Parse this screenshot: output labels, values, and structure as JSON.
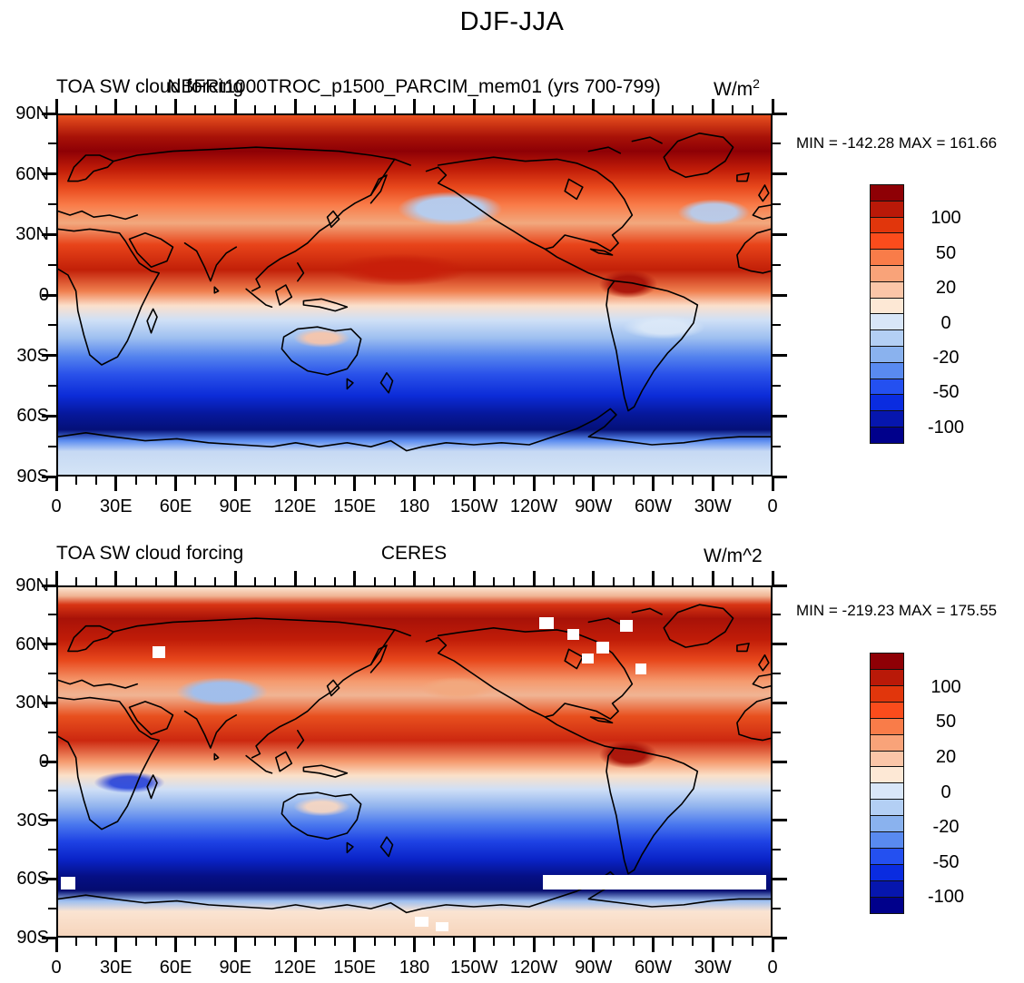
{
  "figure_title": "DJF-JJA",
  "panels": [
    {
      "title_left": "TOA SW cloud forcing",
      "title_center": "NBFRt1000TROC_p1500_PARCIM_mem01 (yrs 700-799)",
      "title_right": "W/m",
      "title_right_sup": "2",
      "stats": "MIN = -142.28 MAX = 161.66"
    },
    {
      "title_left": "TOA SW cloud forcing",
      "title_center": "CERES",
      "title_right": "W/m^2",
      "title_right_sup": "",
      "stats": "MIN = -219.23 MAX = 175.55"
    }
  ],
  "axes": {
    "lat_labels": [
      "90N",
      "60N",
      "30N",
      "0",
      "30S",
      "60S",
      "90S"
    ],
    "lon_labels": [
      "0",
      "30E",
      "60E",
      "90E",
      "120E",
      "150E",
      "180",
      "150W",
      "120W",
      "90W",
      "60W",
      "30W",
      "0"
    ],
    "lon_major_step_deg": 30,
    "lon_minor_step_deg": 10,
    "lat_major_step_deg": 30,
    "lat_minor_step_deg": 15
  },
  "colorbar": {
    "colors": [
      "#8e0005",
      "#b91908",
      "#e1360c",
      "#fb4c1c",
      "#f97c49",
      "#f9a379",
      "#fbc6a8",
      "#fde8d5",
      "#d8e6f8",
      "#b3cff4",
      "#8ab2ee",
      "#598af0",
      "#2450f0",
      "#0a2ce0",
      "#0616ae",
      "#00008b"
    ],
    "labels": [
      "100",
      "50",
      "20",
      "0",
      "-20",
      "-50",
      "-100"
    ],
    "label_boundaries": [
      2,
      4,
      6,
      8,
      10,
      12,
      14
    ]
  },
  "chart_data": [
    {
      "type": "heatmap",
      "panel": "top",
      "title": "NBFRt1000TROC_p1500_PARCIM_mem01 (yrs 700-799)",
      "variable": "TOA SW cloud forcing",
      "season_difference": "DJF-JJA",
      "units": "W/m^2",
      "min": -142.28,
      "max": 161.66,
      "contour_levels": [
        -150,
        -100,
        -70,
        -50,
        -30,
        -20,
        -10,
        0,
        10,
        20,
        30,
        50,
        70,
        100,
        150
      ],
      "x_tick_labels": [
        "0",
        "30E",
        "60E",
        "90E",
        "120E",
        "150E",
        "180",
        "150W",
        "120W",
        "90W",
        "60W",
        "30W",
        "0"
      ],
      "y_tick_labels": [
        "90N",
        "60N",
        "30N",
        "0",
        "30S",
        "60S",
        "90S"
      ],
      "x_range_deg": [
        0,
        360
      ],
      "y_range_deg": [
        -90,
        90
      ],
      "legend_position": "right",
      "palette_high_to_low": [
        "#8e0005",
        "#b91908",
        "#e1360c",
        "#fb4c1c",
        "#f97c49",
        "#f9a379",
        "#fbc6a8",
        "#fde8d5",
        "#d8e6f8",
        "#b3cff4",
        "#8ab2ee",
        "#598af0",
        "#2450f0",
        "#0a2ce0",
        "#0616ae",
        "#00008b"
      ]
    },
    {
      "type": "heatmap",
      "panel": "bottom",
      "title": "CERES",
      "variable": "TOA SW cloud forcing",
      "season_difference": "DJF-JJA",
      "units": "W/m^2",
      "min": -219.23,
      "max": 175.55,
      "contour_levels": [
        -150,
        -100,
        -70,
        -50,
        -30,
        -20,
        -10,
        0,
        10,
        20,
        30,
        50,
        70,
        100,
        150
      ],
      "x_tick_labels": [
        "0",
        "30E",
        "60E",
        "90E",
        "120E",
        "150E",
        "180",
        "150W",
        "120W",
        "90W",
        "60W",
        "30W",
        "0"
      ],
      "y_tick_labels": [
        "90N",
        "60N",
        "30N",
        "0",
        "30S",
        "60S",
        "90S"
      ],
      "x_range_deg": [
        0,
        360
      ],
      "y_range_deg": [
        -90,
        90
      ],
      "legend_position": "right",
      "has_missing_data_gaps": true
    }
  ]
}
